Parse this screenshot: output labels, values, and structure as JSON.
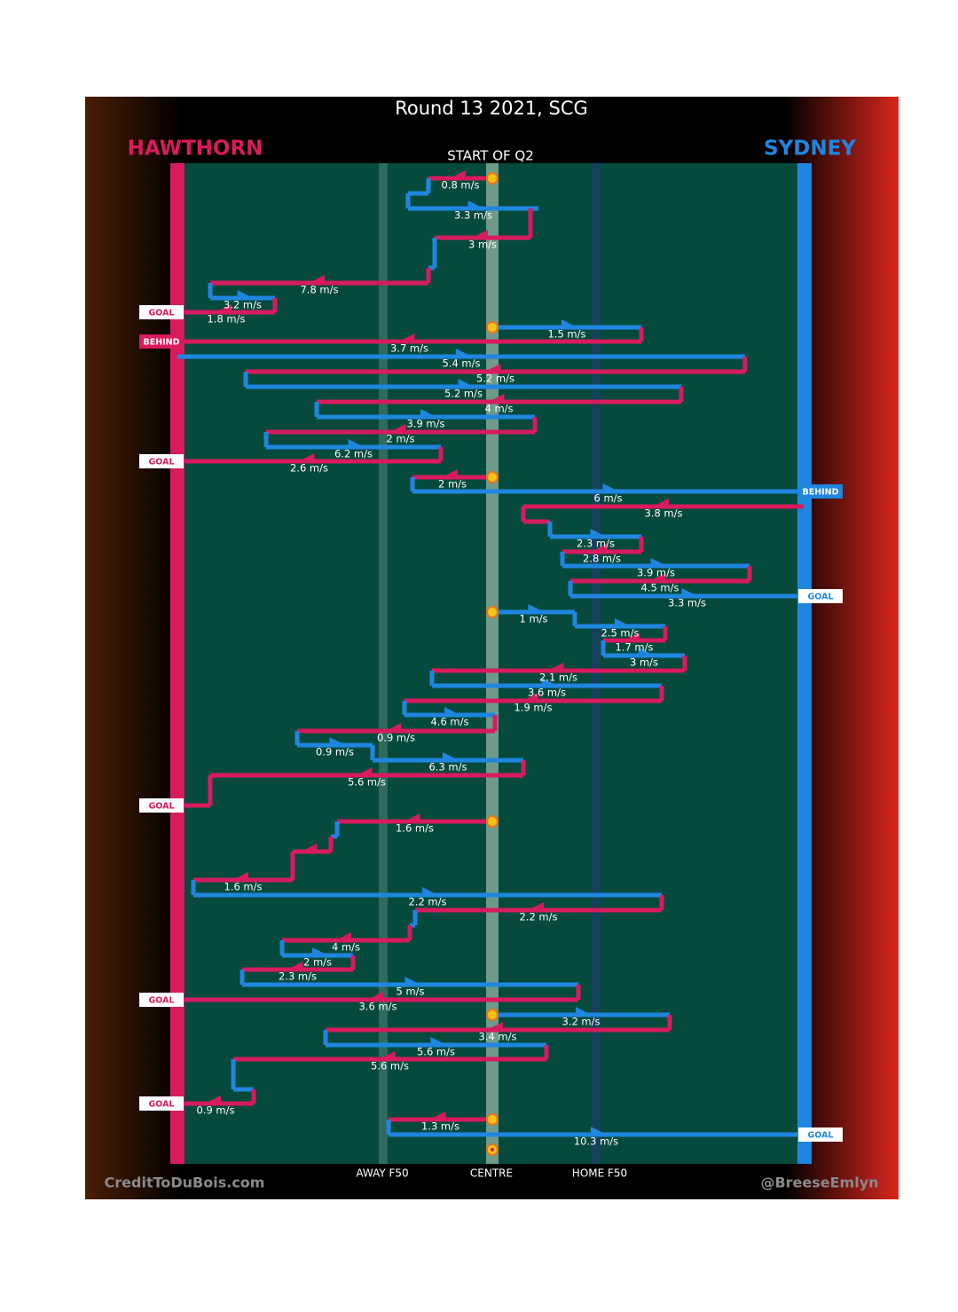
{
  "title": "Round 13 2021, SCG",
  "subtitle": "START OF Q2",
  "teams": {
    "left": "HAWTHORN",
    "right": "SYDNEY"
  },
  "ground_labels": [
    "AWAY F50",
    "CENTRE",
    "HOME F50"
  ],
  "credits": {
    "left": "CreditToDuBois.com",
    "right": "@BreeseEmlyn"
  },
  "chains": [
    {
      "speeds": [
        "0.8 m/s",
        "3.3 m/s",
        "3 m/s",
        "7.8 m/s",
        "3.2 m/s",
        "1.8 m/s"
      ],
      "result": "GOAL"
    },
    {
      "speeds": [
        "1.5 m/s",
        "3.7 m/s"
      ],
      "result": "BEHIND"
    },
    {
      "speeds": [
        "5.4 m/s",
        "5.2 m/s",
        "5.2 m/s",
        "4 m/s",
        "3.9 m/s",
        "2 m/s",
        "6.2 m/s",
        "2.6 m/s"
      ],
      "result": "GOAL"
    },
    {
      "speeds": [
        "2 m/s",
        "6 m/s"
      ],
      "result": "BEHIND"
    },
    {
      "speeds": [
        "3.8 m/s",
        "2.3 m/s",
        "2.8 m/s",
        "3.9 m/s",
        "4.5 m/s",
        "3.3 m/s"
      ],
      "result": "GOAL"
    },
    {
      "speeds": [
        "1 m/s",
        "2.5 m/s",
        "1.7 m/s",
        "3 m/s",
        "2.1 m/s",
        "3.6 m/s",
        "1.9 m/s",
        "4.6 m/s",
        "0.9 m/s",
        "0.9 m/s",
        "6.3 m/s",
        "5.6 m/s"
      ],
      "result": "GOAL"
    },
    {
      "speeds": [
        "1.6 m/s",
        "1.6 m/s",
        "2.2 m/s",
        "2.2 m/s",
        "4 m/s",
        "2 m/s",
        "2.3 m/s",
        "5 m/s",
        "3.6 m/s"
      ],
      "result": "GOAL"
    },
    {
      "speeds": [
        "3.2 m/s",
        "3.4 m/s",
        "5.6 m/s",
        "5.6 m/s",
        "0.9 m/s"
      ],
      "result": "GOAL"
    },
    {
      "speeds": [
        "1.3 m/s",
        "10.3 m/s"
      ],
      "result": "GOAL"
    }
  ]
}
